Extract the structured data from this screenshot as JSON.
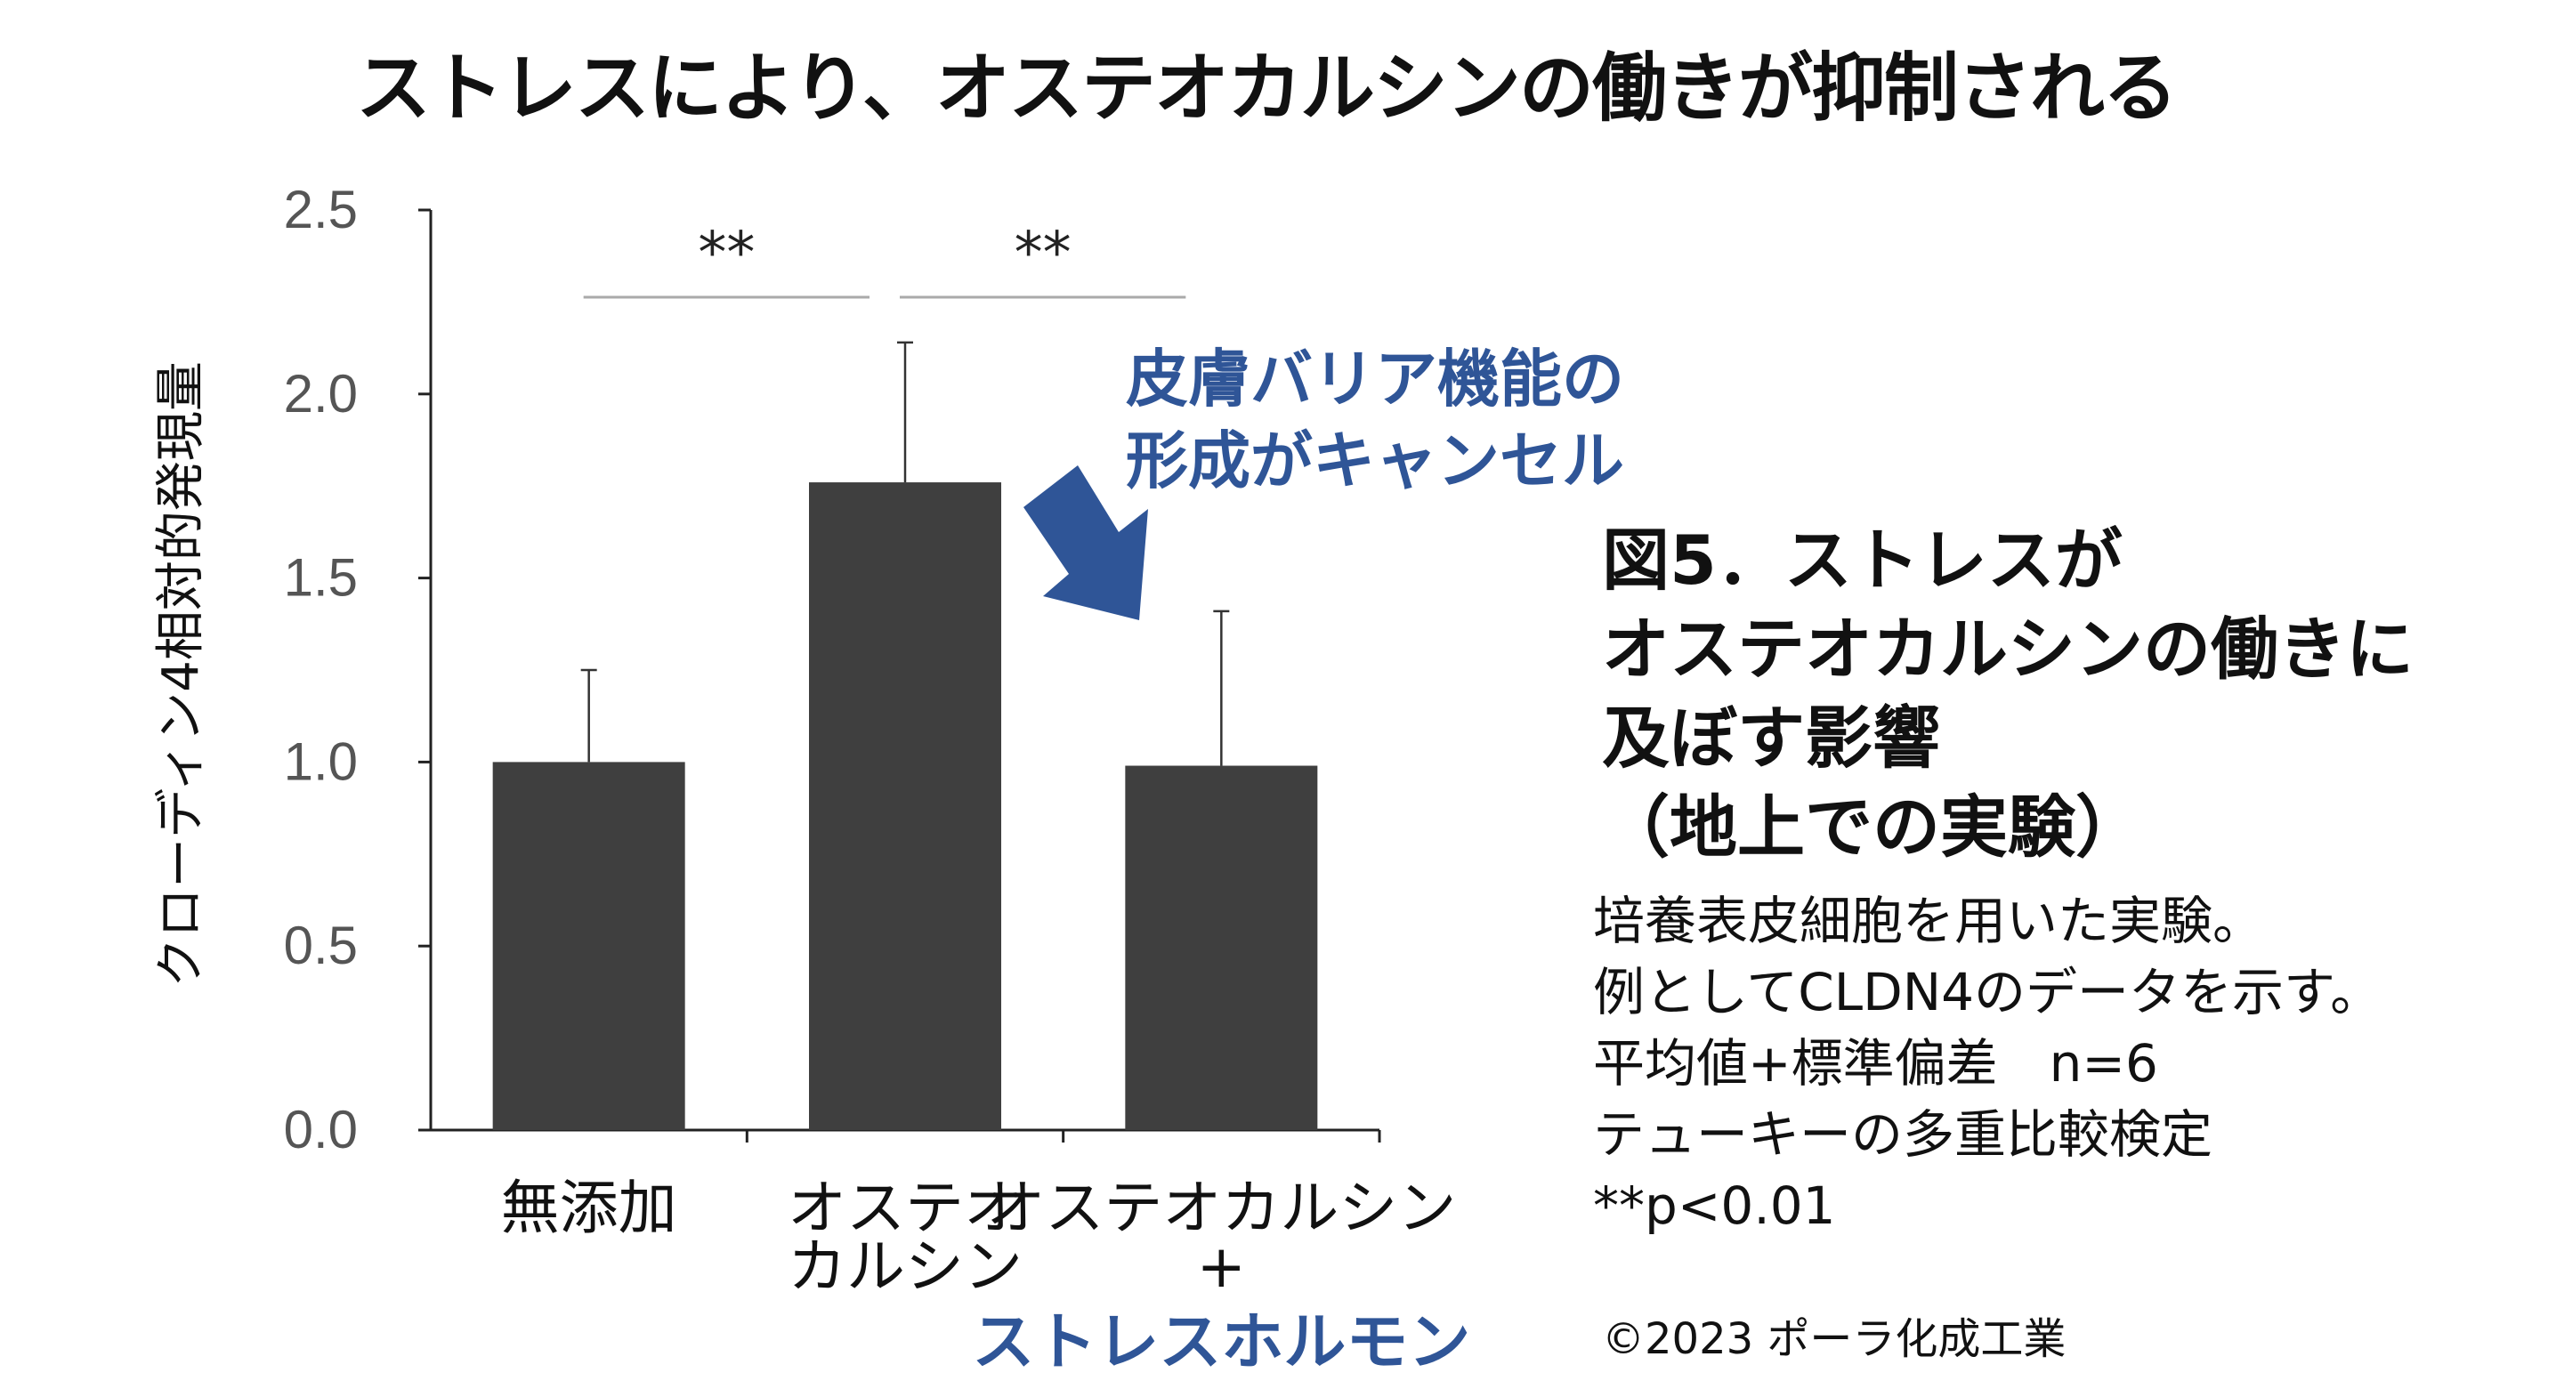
{
  "title": "ストレスにより、オステオカルシンの働きが抑制される",
  "chart_data": {
    "type": "bar",
    "categories": [
      {
        "lines": [
          "無添加"
        ],
        "highlight": ""
      },
      {
        "lines": [
          "オステオ",
          "カルシン"
        ],
        "highlight": ""
      },
      {
        "lines": [
          "オステオカルシン",
          "+"
        ],
        "highlight": "ストレスホルモン"
      }
    ],
    "values": [
      1.0,
      1.76,
      0.99
    ],
    "errors": [
      0.25,
      0.38,
      0.42
    ],
    "ylabel": "クローディン4相対的発現量",
    "ylim": [
      0,
      2.5
    ],
    "yticks": [
      "0.0",
      "0.5",
      "1.0",
      "1.5",
      "2.0",
      "2.5"
    ],
    "significance": [
      {
        "between": [
          0,
          1
        ],
        "label": "**"
      },
      {
        "between": [
          1,
          2
        ],
        "label": "**"
      }
    ],
    "bar_color": "#3f3f3f",
    "highlight_color": "#2f5597"
  },
  "annotation": {
    "lines": [
      "皮膚バリア機能の",
      "形成がキャンセル"
    ],
    "color": "#2f5597"
  },
  "figure_title": {
    "lines": [
      "図5．ストレスが",
      "オステオカルシンの働きに",
      "及ぼす影響",
      "（地上での実験）"
    ]
  },
  "notes": {
    "lines": [
      "培養表皮細胞を用いた実験。",
      "例としてCLDN4のデータを示す。",
      "平均値+標準偏差　n=6",
      "テューキーの多重比較検定",
      "**p<0.01"
    ]
  },
  "copyright": "©2023 ポーラ化成工業"
}
